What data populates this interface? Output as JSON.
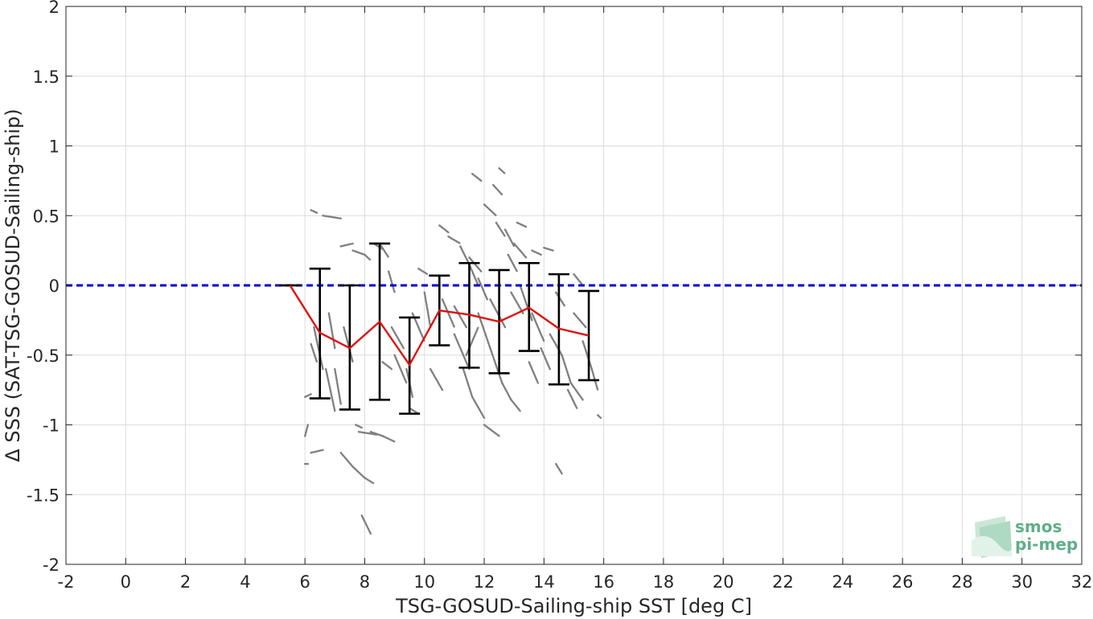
{
  "chart_data": {
    "type": "scatter",
    "title": "",
    "xlabel": "TSG-GOSUD-Sailing-ship SST [deg C]",
    "ylabel": "Δ SSS (SAT-TSG-GOSUD-Sailing-ship)",
    "xlim": [
      -2,
      32
    ],
    "ylim": [
      -2,
      2
    ],
    "xticks": [
      -2,
      0,
      2,
      4,
      6,
      8,
      10,
      12,
      14,
      16,
      18,
      20,
      22,
      24,
      26,
      28,
      30,
      32
    ],
    "yticks": [
      -2,
      -1.5,
      -1,
      -0.5,
      0,
      0.5,
      1,
      1.5,
      2
    ],
    "xtick_labels": [
      "-2",
      "0",
      "2",
      "4",
      "6",
      "8",
      "10",
      "12",
      "14",
      "16",
      "18",
      "20",
      "22",
      "24",
      "26",
      "28",
      "30",
      "32"
    ],
    "ytick_labels": [
      "-2",
      "-1.5",
      "-1",
      "-0.5",
      "0",
      "0.5",
      "1",
      "1.5",
      "2"
    ],
    "grid": true,
    "reference_line": {
      "y": 0,
      "style": "dashed",
      "color": "#0000cc"
    },
    "scatter_color": "#808080",
    "mean_line_color": "#e01010",
    "errorbar_color": "#000000",
    "series": [
      {
        "kind": "mean_with_errorbars",
        "x": [
          5.5,
          6.5,
          7.5,
          8.5,
          9.5,
          10.5,
          11.5,
          12.5,
          13.5,
          14.5,
          15.5
        ],
        "mean": [
          0.0,
          -0.34,
          -0.45,
          -0.26,
          -0.57,
          -0.18,
          -0.21,
          -0.26,
          -0.16,
          -0.31,
          -0.36
        ],
        "lower": [
          0.0,
          -0.81,
          -0.89,
          -0.82,
          -0.92,
          -0.43,
          -0.59,
          -0.63,
          -0.47,
          -0.71,
          -0.68
        ],
        "upper": [
          0.0,
          0.12,
          0.0,
          0.3,
          -0.23,
          0.07,
          0.16,
          0.11,
          0.16,
          0.08,
          -0.04
        ]
      }
    ],
    "scatter_segments": [
      [
        6.0,
        -1.08,
        6.1,
        -1.0
      ],
      [
        6.0,
        -1.28,
        6.1,
        -1.28
      ],
      [
        6.0,
        -0.8,
        6.2,
        -0.78
      ],
      [
        6.2,
        -1.2,
        6.6,
        -1.18
      ],
      [
        6.2,
        0.54,
        6.4,
        0.52
      ],
      [
        6.6,
        0.5,
        7.2,
        0.48
      ],
      [
        6.2,
        -0.42,
        6.4,
        -0.55
      ],
      [
        6.3,
        -0.3,
        6.6,
        -0.6
      ],
      [
        6.7,
        -0.6,
        7.0,
        -0.9
      ],
      [
        6.8,
        -0.2,
        7.0,
        -0.45
      ],
      [
        7.0,
        -0.6,
        7.2,
        -0.85
      ],
      [
        7.3,
        -0.3,
        7.6,
        -0.55
      ],
      [
        7.8,
        -1.05,
        8.4,
        -1.07
      ],
      [
        7.2,
        -1.2,
        7.6,
        -1.3
      ],
      [
        7.6,
        -1.3,
        8.0,
        -1.38
      ],
      [
        8.0,
        -1.38,
        8.3,
        -1.42
      ],
      [
        7.7,
        -1.0,
        7.9,
        -1.02
      ],
      [
        8.2,
        -1.05,
        8.6,
        -1.08
      ],
      [
        8.6,
        -1.08,
        9.0,
        -1.12
      ],
      [
        7.9,
        -1.65,
        8.2,
        -1.78
      ],
      [
        7.2,
        0.28,
        7.6,
        0.3
      ],
      [
        7.6,
        0.25,
        8.0,
        0.22
      ],
      [
        8.0,
        0.22,
        8.2,
        0.18
      ],
      [
        8.3,
        0.3,
        8.6,
        0.26
      ],
      [
        8.6,
        -0.55,
        8.9,
        -0.6
      ],
      [
        8.5,
        0.3,
        8.8,
        0.2
      ],
      [
        8.8,
        0.1,
        9.0,
        -0.05
      ],
      [
        8.9,
        -0.3,
        9.3,
        -0.45
      ],
      [
        9.0,
        -0.5,
        9.4,
        -0.7
      ],
      [
        9.4,
        -0.6,
        9.6,
        -0.8
      ],
      [
        9.5,
        -0.88,
        9.8,
        -0.92
      ],
      [
        9.6,
        -0.2,
        10.0,
        -0.4
      ],
      [
        9.8,
        0.12,
        10.1,
        0.08
      ],
      [
        10.0,
        -0.05,
        10.2,
        -0.3
      ],
      [
        10.5,
        0.43,
        10.8,
        0.38
      ],
      [
        10.8,
        0.35,
        11.2,
        0.3
      ],
      [
        11.2,
        0.28,
        11.5,
        0.15
      ],
      [
        11.5,
        0.15,
        11.8,
        0.0
      ],
      [
        10.6,
        -0.1,
        11.0,
        -0.3
      ],
      [
        11.0,
        -0.35,
        11.5,
        -0.6
      ],
      [
        11.3,
        -0.6,
        11.6,
        -0.8
      ],
      [
        11.6,
        -0.8,
        12.0,
        -0.95
      ],
      [
        12.0,
        -1.0,
        12.5,
        -1.08
      ],
      [
        11.4,
        -0.5,
        11.8,
        -0.3
      ],
      [
        11.8,
        -0.2,
        12.2,
        -0.45
      ],
      [
        12.2,
        -0.45,
        12.6,
        -0.7
      ],
      [
        12.6,
        -0.7,
        12.9,
        -0.82
      ],
      [
        12.9,
        -0.82,
        13.2,
        -0.9
      ],
      [
        11.6,
        0.8,
        11.9,
        0.75
      ],
      [
        12.5,
        0.84,
        12.7,
        0.8
      ],
      [
        12.3,
        0.72,
        12.6,
        0.65
      ],
      [
        12.0,
        0.58,
        12.4,
        0.5
      ],
      [
        12.4,
        0.45,
        12.7,
        0.35
      ],
      [
        12.7,
        0.4,
        13.0,
        0.28
      ],
      [
        13.0,
        0.3,
        13.4,
        0.2
      ],
      [
        13.1,
        0.45,
        13.4,
        0.42
      ],
      [
        13.6,
        0.25,
        13.9,
        0.22
      ],
      [
        12.8,
        0.22,
        13.1,
        0.1
      ],
      [
        13.2,
        0.0,
        13.6,
        -0.25
      ],
      [
        13.6,
        -0.2,
        14.0,
        -0.4
      ],
      [
        13.9,
        -0.45,
        14.2,
        -0.6
      ],
      [
        14.2,
        -0.35,
        14.6,
        -0.5
      ],
      [
        14.6,
        -0.5,
        14.9,
        -0.7
      ],
      [
        14.9,
        -0.7,
        15.3,
        -0.82
      ],
      [
        15.0,
        0.08,
        15.3,
        0.0
      ],
      [
        14.0,
        0.27,
        14.3,
        0.25
      ],
      [
        14.4,
        -0.05,
        14.7,
        -0.15
      ],
      [
        15.0,
        -0.2,
        15.4,
        -0.3
      ],
      [
        15.3,
        -0.4,
        15.6,
        -0.6
      ],
      [
        15.6,
        -0.6,
        15.8,
        -0.75
      ],
      [
        15.8,
        -0.93,
        15.9,
        -0.95
      ],
      [
        14.8,
        -0.75,
        15.1,
        -0.88
      ],
      [
        14.4,
        -1.28,
        14.6,
        -1.35
      ],
      [
        11.0,
        -0.15,
        11.4,
        -0.3
      ],
      [
        12.9,
        -0.05,
        13.3,
        -0.2
      ],
      [
        11.8,
        0.05,
        12.1,
        -0.1
      ],
      [
        13.5,
        -0.55,
        13.8,
        -0.7
      ],
      [
        10.2,
        -0.6,
        10.6,
        -0.75
      ],
      [
        12.2,
        -0.1,
        12.7,
        -0.3
      ],
      [
        11.5,
        0.2,
        11.9,
        0.1
      ]
    ]
  },
  "logo": {
    "line1": "smos",
    "line2": "pi-mep"
  }
}
